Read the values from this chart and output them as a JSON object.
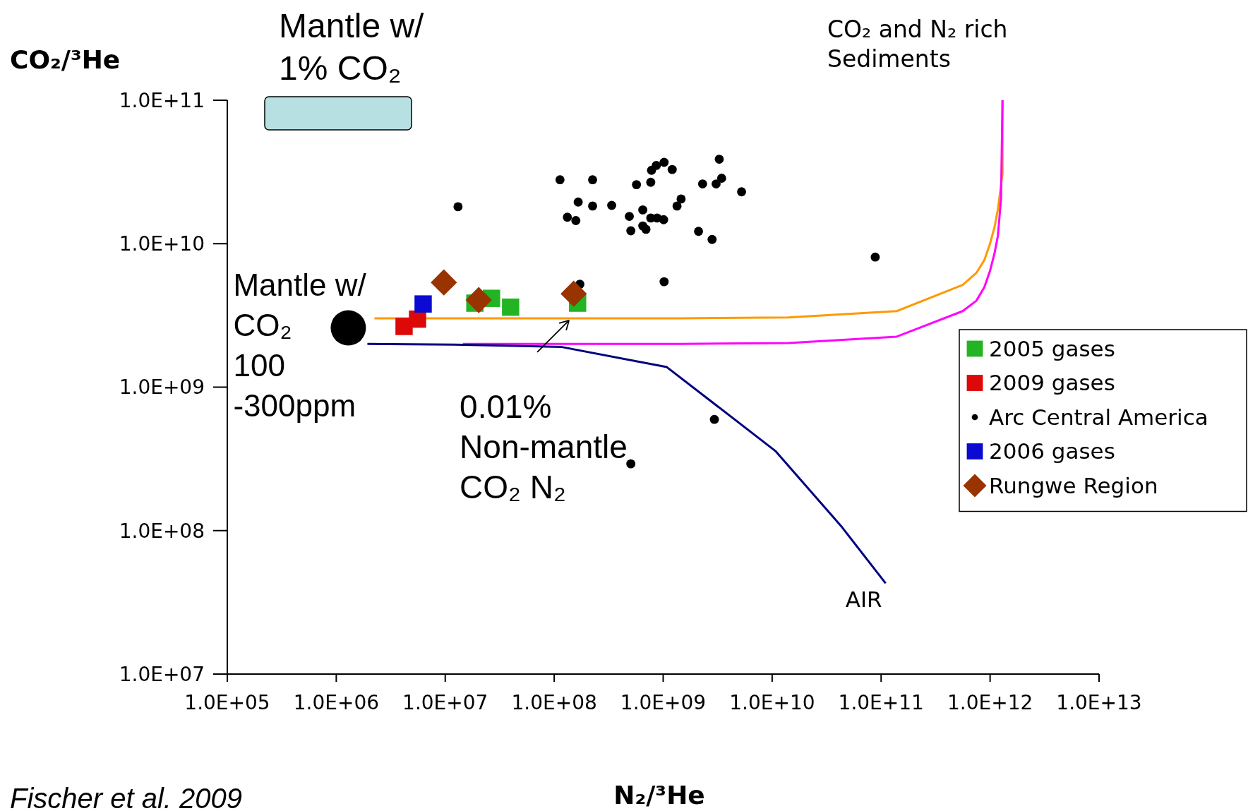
{
  "chart_data": {
    "type": "scatter",
    "xlabel": "N₂/³He",
    "ylabel": "CO₂/³He",
    "log": "xy",
    "grid": false,
    "legend": "right",
    "xlim": [
      100000,
      10000000000000
    ],
    "ylim": [
      10000000,
      100000000000
    ],
    "xticks": [
      {
        "value": 100000,
        "label": "1.0E+05"
      },
      {
        "value": 1000000,
        "label": "1.0E+06"
      },
      {
        "value": 10000000,
        "label": "1.0E+07"
      },
      {
        "value": 100000000,
        "label": "1.0E+08"
      },
      {
        "value": 1000000000,
        "label": "1.0E+09"
      },
      {
        "value": 10000000000,
        "label": "1.0E+10"
      },
      {
        "value": 100000000000,
        "label": "1.0E+11"
      },
      {
        "value": 1000000000000,
        "label": "1.0E+12"
      },
      {
        "value": 10000000000000,
        "label": "1.0E+13"
      }
    ],
    "yticks": [
      {
        "value": 10000000,
        "label": "1.0E+07"
      },
      {
        "value": 100000000,
        "label": "1.0E+08"
      },
      {
        "value": 1000000000,
        "label": "1.0E+09"
      },
      {
        "value": 10000000000,
        "label": "1.0E+10"
      },
      {
        "value": 100000000000,
        "label": "1.0E+11"
      }
    ],
    "series": [
      {
        "name": "2005 gases",
        "marker": "square",
        "color": "#22b422",
        "x": [
          18700000.0,
          26600000.0,
          39800000.0,
          164000000.0
        ],
        "values": [
          3850000000.0,
          4160000000.0,
          3610000000.0,
          3850000000.0
        ]
      },
      {
        "name": "2009 gases",
        "marker": "square",
        "color": "#dd0808",
        "x": [
          4190000.0,
          5570000.0
        ],
        "values": [
          2650000000.0,
          2980000000.0
        ]
      },
      {
        "name": "Arc Central America",
        "marker": "circle",
        "color": "#000000",
        "x": [
          13100000.0,
          113000000.0,
          225000000.0,
          166000000.0,
          225000000.0,
          337000000.0,
          132000000.0,
          158000000.0,
          569000000.0,
          769000000.0,
          782000000.0,
          865000000.0,
          1020000000.0,
          1210000000.0,
          1460000000.0,
          1340000000.0,
          650000000.0,
          489000000.0,
          650000000.0,
          695000000.0,
          505000000.0,
          769000000.0,
          879000000.0,
          1010000000.0,
          2300000000.0,
          3060000000.0,
          3270000000.0,
          3440000000.0,
          5240000000.0,
          2110000000.0,
          2810000000.0,
          88300000000.0,
          1020000000.0,
          172000000.0,
          2950000000.0,
          505000000.0
        ],
        "values": [
          18100000000.0,
          27900000000.0,
          27900000000.0,
          19500000000.0,
          18300000000.0,
          18500000000.0,
          15300000000.0,
          14500000000.0,
          25800000000.0,
          26800000000.0,
          32500000000.0,
          35100000000.0,
          36900000000.0,
          32900000000.0,
          20500000000.0,
          18300000000.0,
          17200000000.0,
          15500000000.0,
          13300000000.0,
          12600000000.0,
          12300000000.0,
          15100000000.0,
          15100000000.0,
          14700000000.0,
          26100000000.0,
          26100000000.0,
          38800000000.0,
          28600000000.0,
          23000000000.0,
          12200000000.0,
          10700000000.0,
          8070000000.0,
          5430000000.0,
          5220000000.0,
          596000000.0,
          292000000.0
        ]
      },
      {
        "name": "2006 gases",
        "marker": "square",
        "color": "#0a0ad2",
        "x": [
          6270000.0
        ],
        "values": [
          3800000000.0
        ]
      },
      {
        "name": "Rungwe Region",
        "marker": "diamond",
        "color": "#993300",
        "x": [
          9710000.0,
          20300000.0,
          151000000.0
        ],
        "values": [
          5370000000.0,
          4050000000.0,
          4480000000.0
        ]
      },
      {
        "type": "bubble",
        "color": "#000000",
        "x": [
          1290000.0
        ],
        "values": [
          2590000000.0
        ],
        "sizes": [
          1
        ]
      },
      {
        "type": "line",
        "color": "#ff9900",
        "x": [
          2240000.0,
          15300000.0,
          143000000.0,
          1430000000.0,
          14100000000.0,
          139000000000.0,
          561000000000.0,
          748000000000.0,
          885000000000.0,
          995000000000.0,
          1100000000000.0,
          1180000000000.0,
          1300000000000.0,
          1300000000000.0
        ],
        "values": [
          3020000000.0,
          3020000000.0,
          3020000000.0,
          3020000000.0,
          3060000000.0,
          3390000000.0,
          5160000000.0,
          6250000000.0,
          7670000000.0,
          9910000000.0,
          13100000000.0,
          17400000000.0,
          30900000000.0,
          100000000000.0
        ]
      },
      {
        "type": "line",
        "color": "#ff00ff",
        "x": [
          14500000.0,
          143000000.0,
          1430000000.0,
          14100000000.0,
          139000000000.0,
          561000000000.0,
          748000000000.0,
          885000000000.0,
          995000000000.0,
          1100000000000.0,
          1180000000000.0,
          1260000000000.0,
          1300000000000.0
        ],
        "values": [
          2000000000.0,
          2000000000.0,
          2000000000.0,
          2030000000.0,
          2250000000.0,
          3390000000.0,
          4000000000.0,
          4970000000.0,
          6410000000.0,
          8610000000.0,
          11400000000.0,
          20500000000.0,
          100000000000.0
        ]
      },
      {
        "type": "line",
        "color": "#000080",
        "x": [
          1930000.0,
          12100000.0,
          115000000.0,
          1080000000.0,
          10800000000.0,
          43600000000.0,
          110000000000.0
        ],
        "values": [
          2000000000.0,
          1980000000.0,
          1910000000.0,
          1380000000.0,
          357000000.0,
          106000000.0,
          42900000.0
        ]
      }
    ],
    "annotations": [
      "Mantle w/\n1% CO₂",
      {
        "text": "Mantle w/\nCO₂\n100\n-300ppm",
        "x": 1290000,
        "y": 2590000000
      },
      {
        "text": "0.01%\nNon-mantle\nCO₂ N₂",
        "x": 143000000,
        "y": 3020000000
      },
      {
        "text": "AIR",
        "x": 110000000000,
        "y": 42900000
      },
      "CO₂ and N₂ rich\nSediments",
      "Fischer et al. 2009"
    ]
  }
}
